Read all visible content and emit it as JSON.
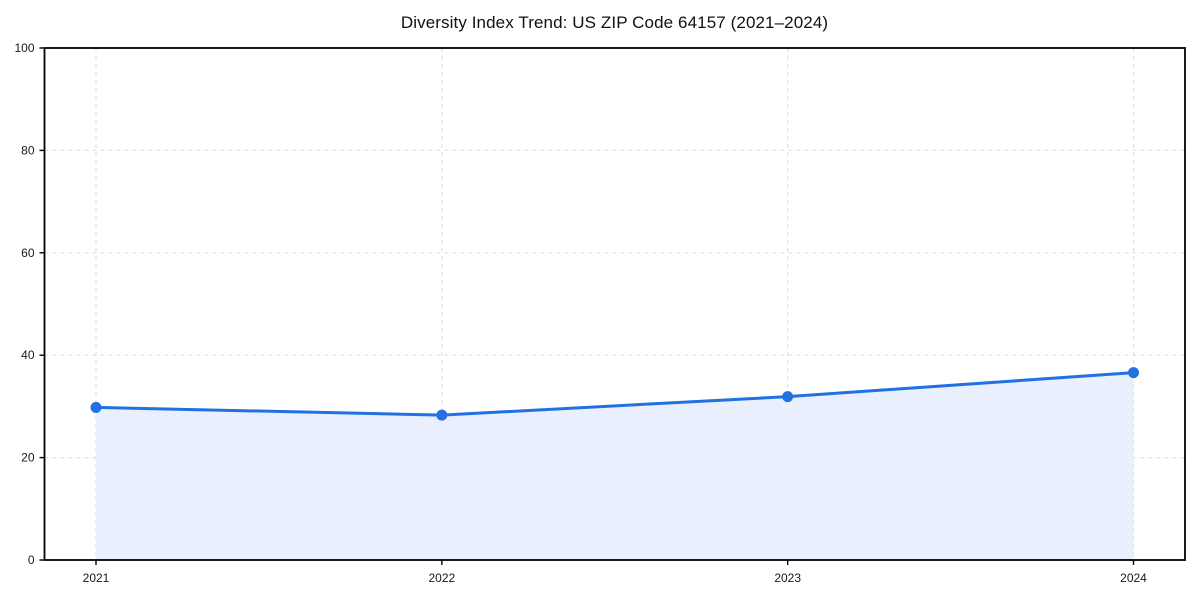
{
  "chart_data": {
    "type": "area",
    "title": "Diversity Index Trend: US ZIP Code 64157 (2021–2024)",
    "categories": [
      "2021",
      "2022",
      "2023",
      "2024"
    ],
    "series": [
      {
        "name": "Diversity Index",
        "values": [
          29.8,
          28.3,
          31.9,
          36.6
        ]
      }
    ],
    "xlabel": "",
    "ylabel": "",
    "ylim": [
      0,
      100
    ],
    "yticks": [
      0,
      20,
      40,
      60,
      80,
      100
    ],
    "grid": true,
    "grid_style": "dashed",
    "legend": false,
    "colors": {
      "line": "#2171e3",
      "marker": "#2171e3",
      "fill": "#e9effc",
      "grid": "#dcdcdc",
      "spine": "#000000",
      "tick_text": "#1a1a1a"
    }
  }
}
